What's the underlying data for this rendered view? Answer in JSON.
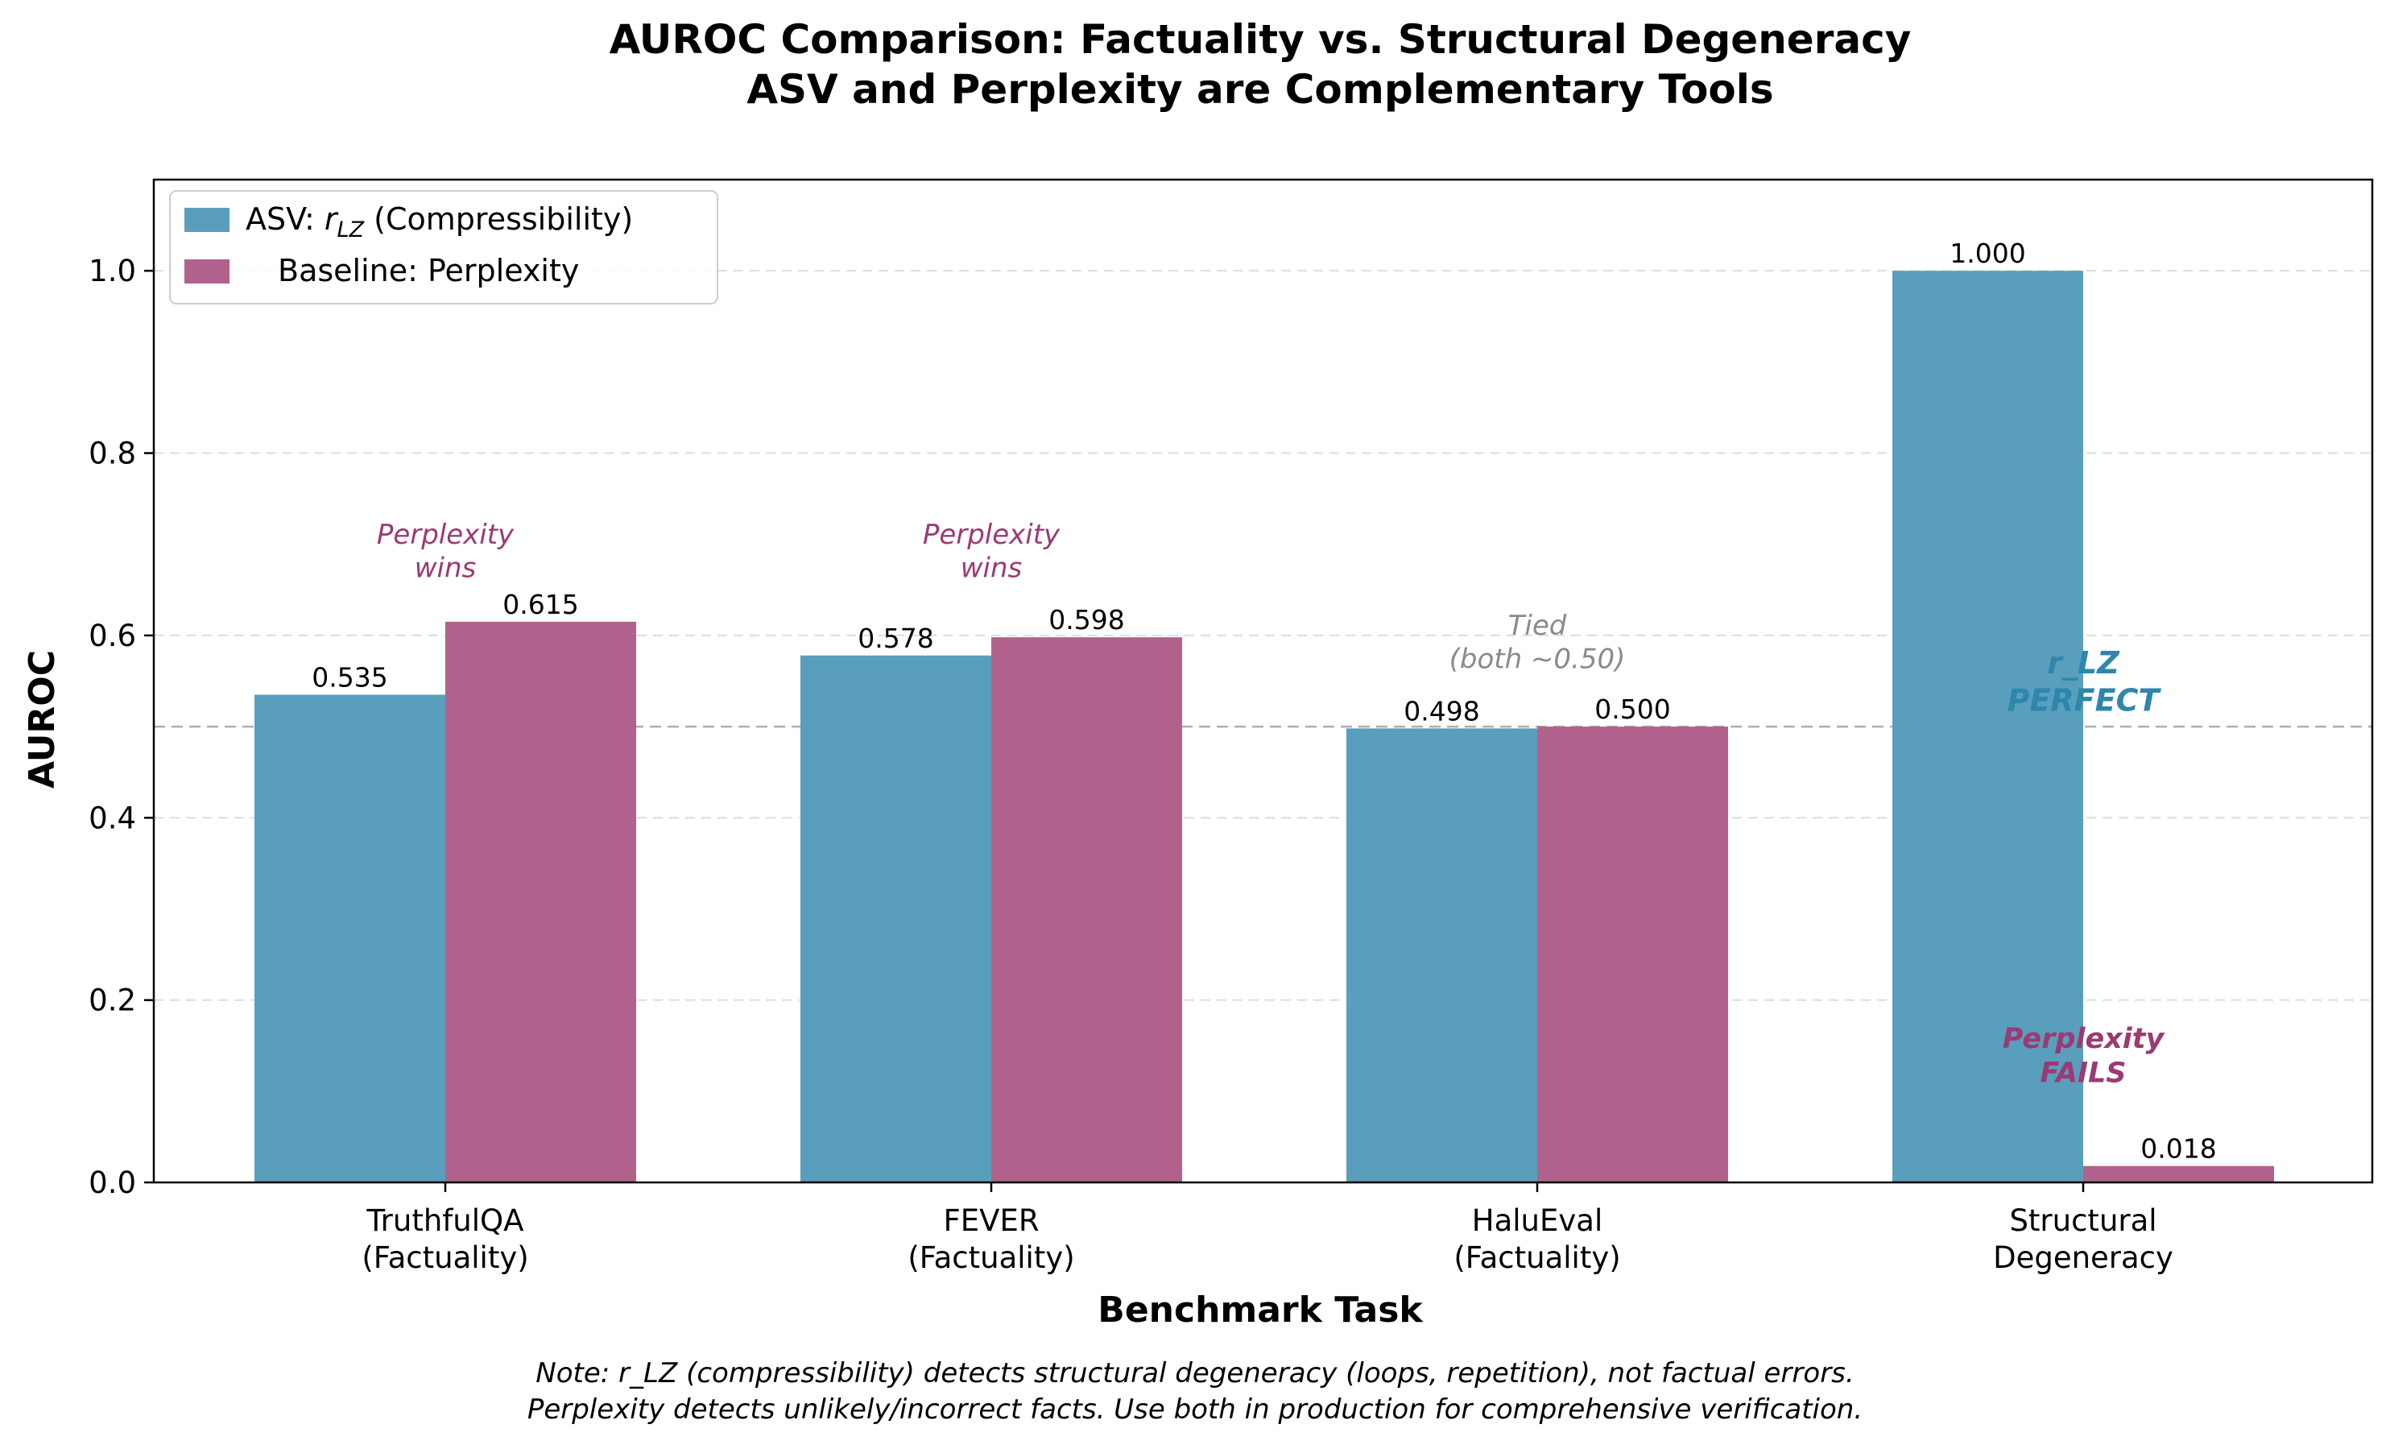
{
  "chart_data": {
    "type": "bar",
    "title": "AUROC Comparison: Factuality vs. Structural Degeneracy",
    "subtitle": "ASV and Perplexity are Complementary Tools",
    "xlabel": "Benchmark Task",
    "ylabel": "AUROC",
    "ylim": [
      0,
      1.1
    ],
    "yticks": [
      "0.0",
      "0.2",
      "0.4",
      "0.6",
      "0.8",
      "1.0"
    ],
    "ytick_values": [
      0,
      0.2,
      0.4,
      0.6,
      0.8,
      1.0
    ],
    "grid": "horizontal dashed",
    "reference_line": 0.5,
    "legend_position": "top-left",
    "categories": [
      [
        "TruthfulQA",
        "(Factuality)"
      ],
      [
        "FEVER",
        "(Factuality)"
      ],
      [
        "HaluEval",
        "(Factuality)"
      ],
      [
        "Structural",
        "Degeneracy"
      ]
    ],
    "series": [
      {
        "name_prefix": "ASV: ",
        "name_math": "r",
        "name_sub": "LZ",
        "name_suffix": " (Compressibility)",
        "color": "#5a9ebe",
        "values": [
          0.535,
          0.578,
          0.498,
          1.0
        ],
        "labels": [
          "0.535",
          "0.578",
          "0.498",
          "1.000"
        ]
      },
      {
        "name": "Baseline: Perplexity",
        "color": "#b0628c",
        "values": [
          0.615,
          0.598,
          0.5,
          0.018
        ],
        "labels": [
          "0.615",
          "0.598",
          "0.500",
          "0.018"
        ]
      }
    ],
    "annotations": [
      {
        "lines": [
          "Perplexity",
          "wins"
        ],
        "color": "#9b3a73",
        "style": "italic"
      },
      {
        "lines": [
          "Perplexity",
          "wins"
        ],
        "color": "#9b3a73",
        "style": "italic"
      },
      {
        "lines": [
          "Tied",
          "(both ~0.50)"
        ],
        "color": "#8a8a8a",
        "style": "italic"
      },
      {
        "lines": [
          "r_LZ",
          "PERFECT"
        ],
        "color": "#2e86ab",
        "style": "bold-italic"
      },
      {
        "lines": [
          "Perplexity",
          "FAILS"
        ],
        "color": "#9b3a73",
        "style": "bold-italic"
      }
    ],
    "note": [
      "Note: r_LZ (compressibility) detects structural degeneracy (loops, repetition), not factual errors.",
      "Perplexity detects unlikely/incorrect facts. Use both in production for comprehensive verification."
    ]
  }
}
